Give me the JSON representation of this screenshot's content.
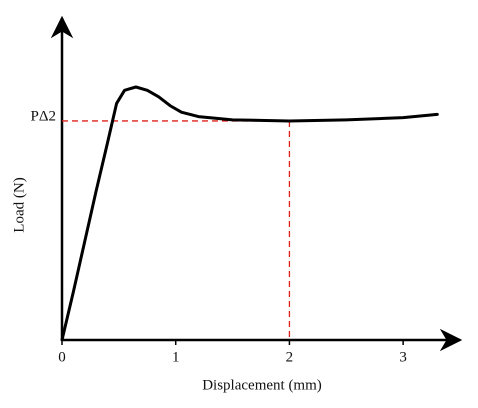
{
  "chart_data": {
    "type": "line",
    "x_label": "Displacement (mm)",
    "y_label": "Load (N)",
    "x": [
      0,
      0.1,
      0.2,
      0.3,
      0.4,
      0.48,
      0.55,
      0.65,
      0.75,
      0.85,
      0.95,
      1.05,
      1.2,
      1.5,
      2,
      2.5,
      3,
      3.3
    ],
    "series": [
      {
        "color": "#000000",
        "values": [
          0,
          0.22,
          0.45,
          0.68,
          0.9,
          1.08,
          1.14,
          1.155,
          1.14,
          1.11,
          1.07,
          1.04,
          1.02,
          1.005,
          1.0,
          1.005,
          1.015,
          1.03
        ]
      }
    ],
    "xlim": [
      0,
      3.5
    ],
    "ylim": [
      0,
      1.47
    ],
    "xticks": [
      0,
      1,
      2,
      3
    ],
    "yticks": [
      {
        "value": 1,
        "label": "PΔ2"
      }
    ],
    "reference_color": "#e0201b"
  }
}
